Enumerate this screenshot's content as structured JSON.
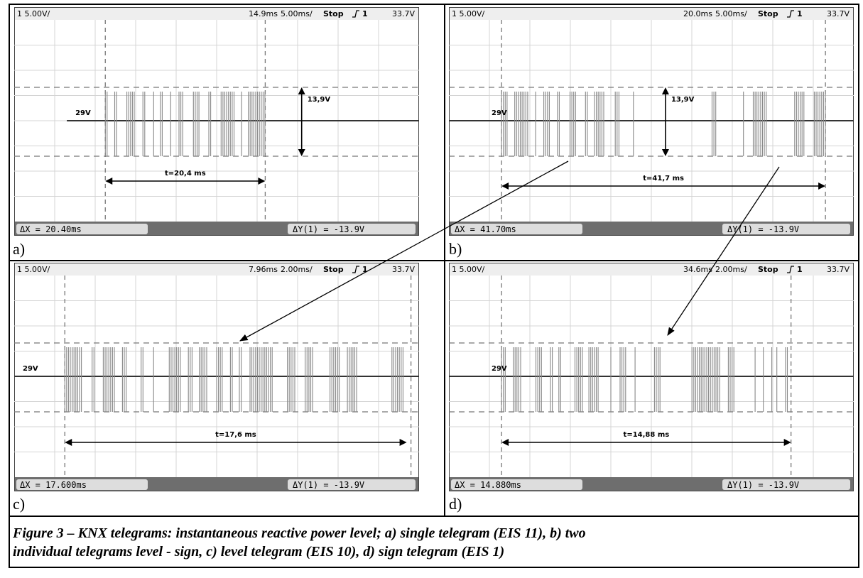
{
  "panels": [
    {
      "label": "a)",
      "header": {
        "channel": "1 5.00V/",
        "delay": "14.9ms",
        "timebase": "5.00ms/",
        "mode": "Stop",
        "trigger": "1",
        "level": "33.7V"
      },
      "baseline_label": "29V",
      "amplitude_label": "13,9V",
      "time_label": "t=20,4 ms",
      "delta_x": "ΔX = 20.40ms",
      "delta_y": "ΔY(1) = -13.9V"
    },
    {
      "label": "b)",
      "header": {
        "channel": "1 5.00V/",
        "delay": "20.0ms",
        "timebase": "5.00ms/",
        "mode": "Stop",
        "trigger": "1",
        "level": "33.7V"
      },
      "baseline_label": "29V",
      "amplitude_label": "13,9V",
      "time_label": "t=41,7 ms",
      "delta_x": "ΔX = 41.70ms",
      "delta_y": "ΔY(1) = -13.9V"
    },
    {
      "label": "c)",
      "header": {
        "channel": "1 5.00V/",
        "delay": "7.96ms",
        "timebase": "2.00ms/",
        "mode": "Stop",
        "trigger": "1",
        "level": "33.7V"
      },
      "baseline_label": "29V",
      "time_label": "t=17,6 ms",
      "delta_x": "ΔX = 17.600ms",
      "delta_y": "ΔY(1) = -13.9V"
    },
    {
      "label": "d)",
      "header": {
        "channel": "1 5.00V/",
        "delay": "34.6ms",
        "timebase": "2.00ms/",
        "mode": "Stop",
        "trigger": "1",
        "level": "33.7V"
      },
      "baseline_label": "29V",
      "time_label": "t=14,88 ms",
      "delta_x": "ΔX = 14.880ms",
      "delta_y": "ΔY(1) = -13.9V"
    }
  ],
  "caption": [
    "Figure 3 – KNX telegrams: instantaneous reactive power level; a) single telegram (EIS 11), b) two",
    "individual telegrams level - sign, c) level telegram (EIS 10), d) sign telegram (EIS 1)"
  ]
}
